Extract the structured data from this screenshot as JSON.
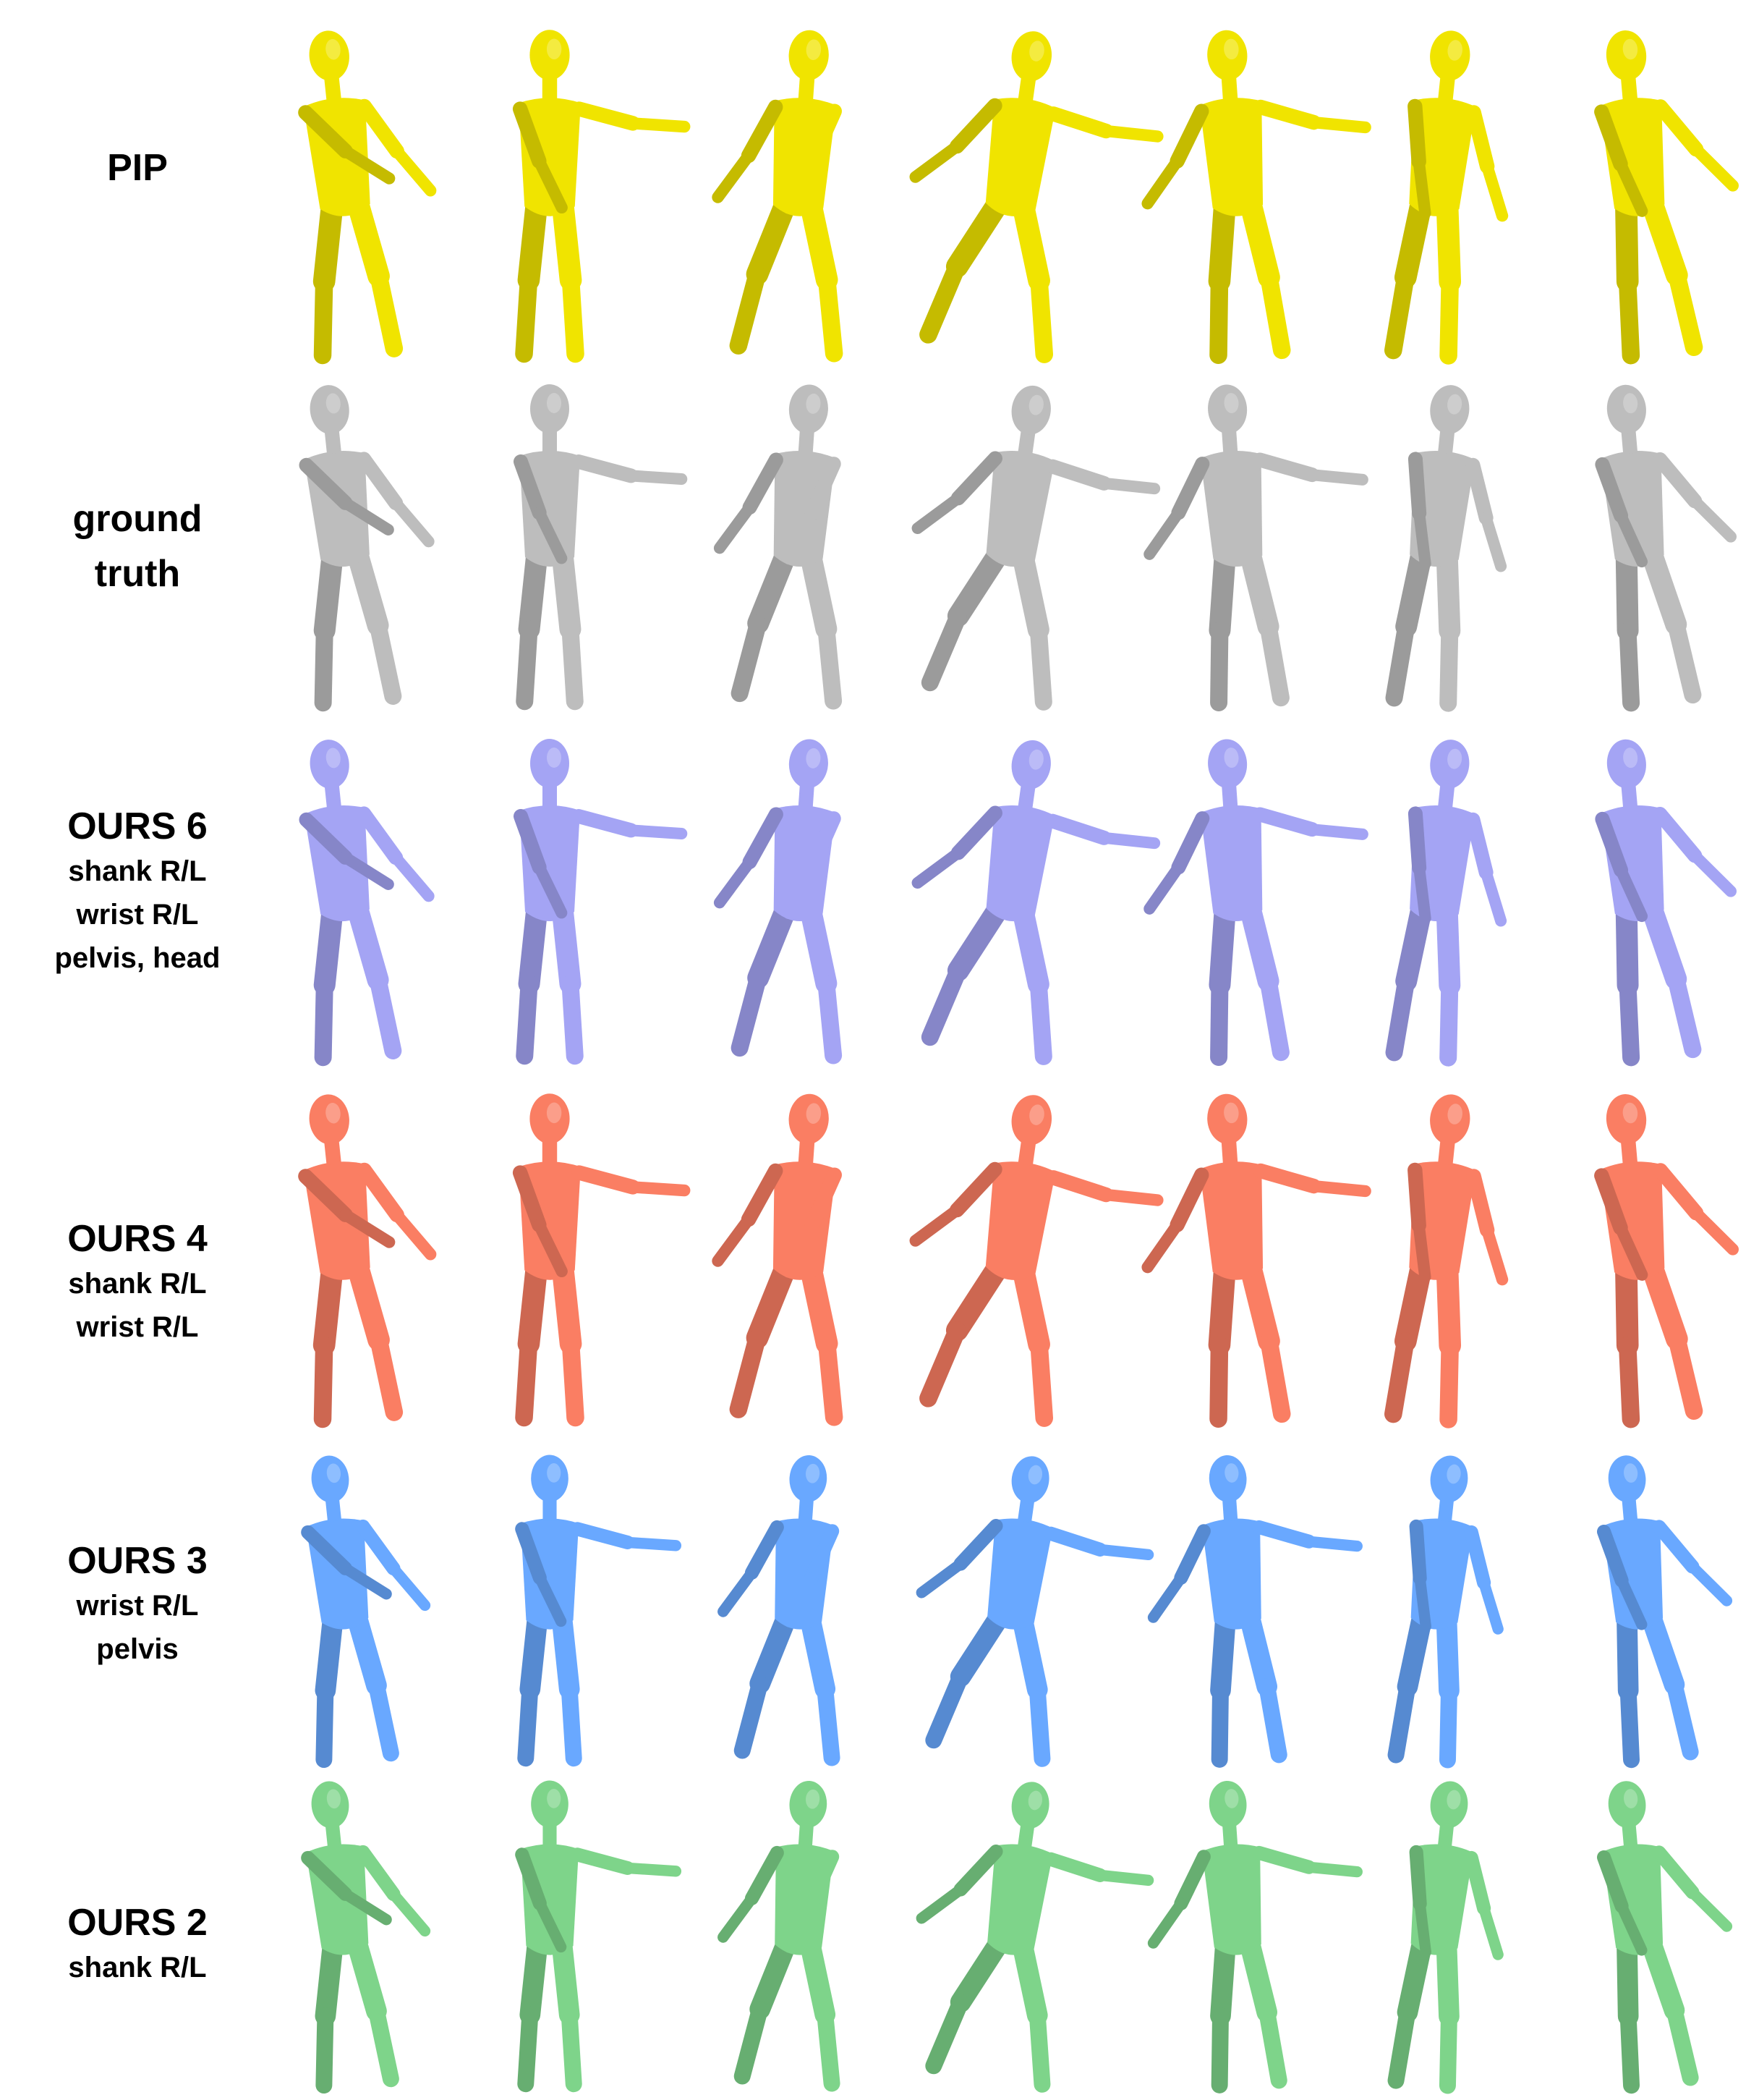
{
  "colors": {
    "background": "#ffffff",
    "pip": "#f0e400",
    "ground_truth": "#bdbdbd",
    "ours6": "#a4a4f4",
    "ours4": "#fa7e63",
    "ours3": "#69a8ff",
    "ours2": "#7ed48a"
  },
  "rows": [
    {
      "key": "pip",
      "title_lines": [
        "PIP"
      ],
      "sensor_lines": [],
      "color": "#f0e400",
      "figure_count": 7
    },
    {
      "key": "ground_truth",
      "title_lines": [
        "ground",
        "truth"
      ],
      "sensor_lines": [],
      "color": "#bdbdbd",
      "figure_count": 7
    },
    {
      "key": "ours6",
      "title_lines": [
        "OURS 6"
      ],
      "sensor_lines": [
        "shank R/L",
        "wrist R/L",
        "pelvis, head"
      ],
      "color": "#a4a4f4",
      "figure_count": 7
    },
    {
      "key": "ours4",
      "title_lines": [
        "OURS 4"
      ],
      "sensor_lines": [
        "shank R/L",
        "wrist R/L"
      ],
      "color": "#fa7e63",
      "figure_count": 7
    },
    {
      "key": "ours3",
      "title_lines": [
        "OURS 3"
      ],
      "sensor_lines": [
        "wrist R/L",
        "pelvis"
      ],
      "color": "#69a8ff",
      "figure_count": 7
    },
    {
      "key": "ours2",
      "title_lines": [
        "OURS 2"
      ],
      "sensor_lines": [
        "shank R/L"
      ],
      "color": "#7ed48a",
      "figure_count": 7
    }
  ]
}
